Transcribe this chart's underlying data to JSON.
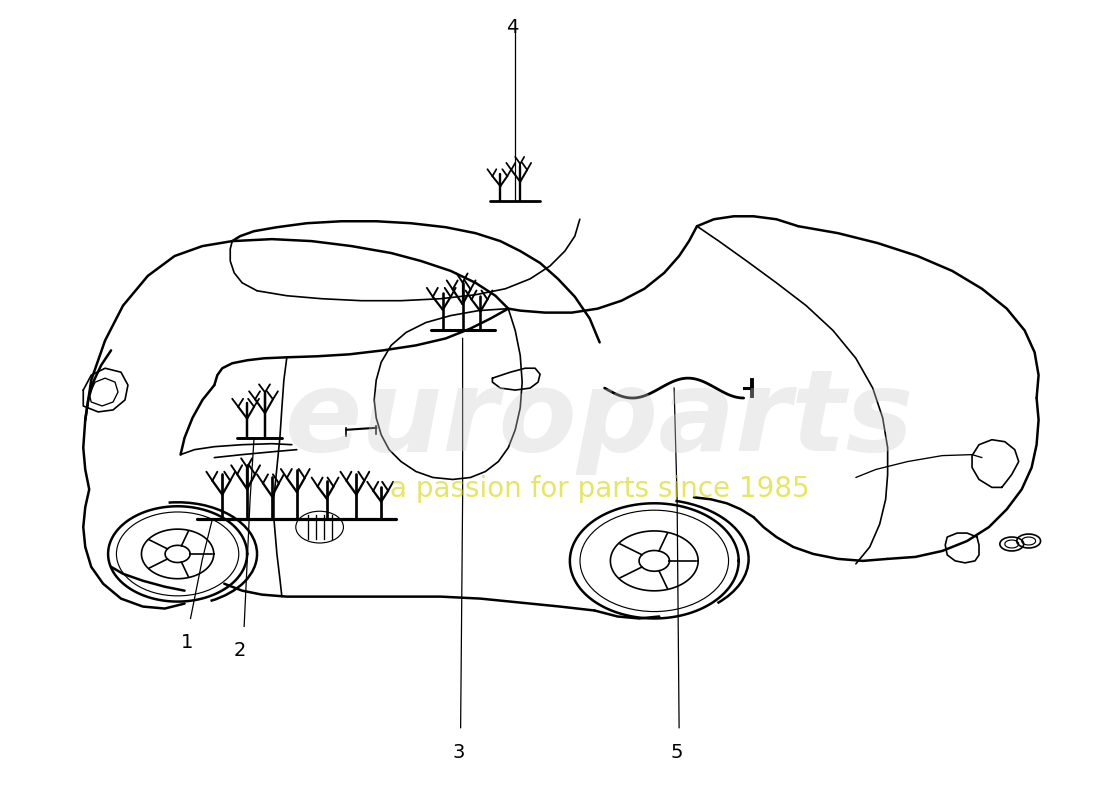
{
  "background_color": "#ffffff",
  "line_color": "#000000",
  "watermark_text1": "europarts",
  "watermark_text2": "a passion for parts since 1985",
  "fig_width": 11.0,
  "fig_height": 8.0,
  "dpi": 100
}
